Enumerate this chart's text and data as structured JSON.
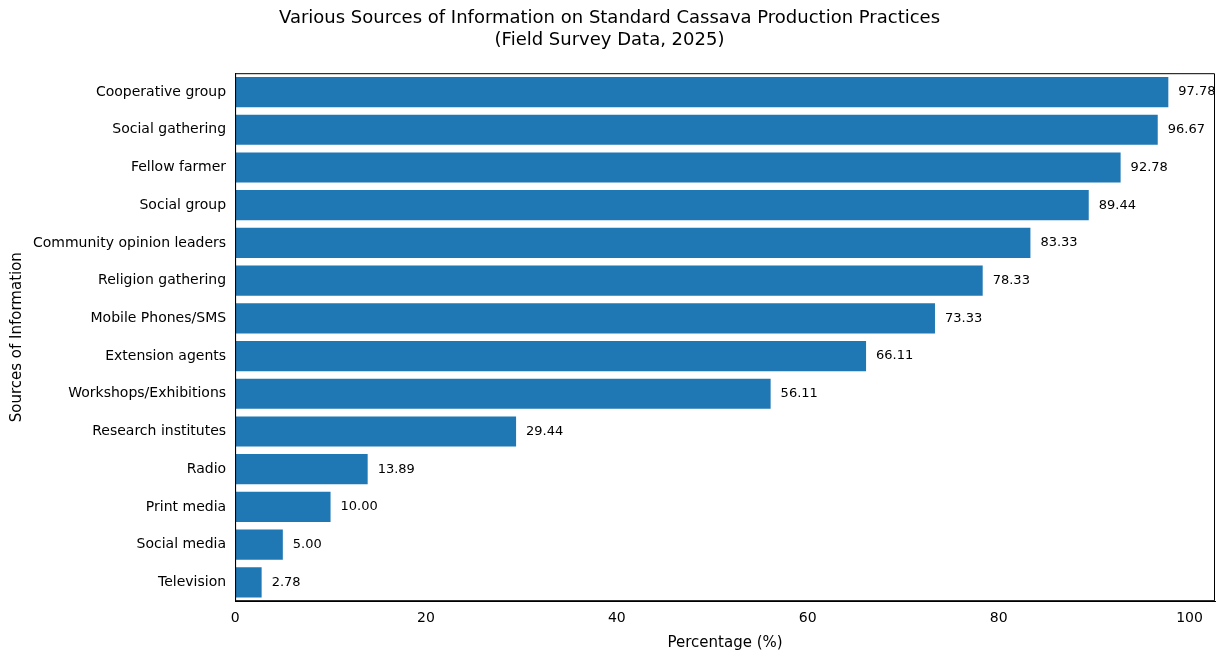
{
  "chart_data": {
    "type": "bar",
    "orientation": "horizontal",
    "title": "Various Sources of Information on Standard Cassava Production Practices\n(Field Survey Data, 2025)",
    "xlabel": "Percentage (%)",
    "ylabel": "Sources of Information",
    "categories": [
      "Cooperative group",
      "Social gathering",
      "Fellow farmer",
      "Social group",
      "Community opinion leaders",
      "Religion gathering",
      "Mobile Phones/SMS",
      "Extension agents",
      "Workshops/Exhibitions",
      "Research institutes",
      "Radio",
      "Print media",
      "Social media",
      "Television"
    ],
    "values": [
      97.78,
      96.67,
      92.78,
      89.44,
      83.33,
      78.33,
      73.33,
      66.11,
      56.11,
      29.44,
      13.89,
      10.0,
      5.0,
      2.78
    ],
    "value_labels": [
      "97.78",
      "96.67",
      "92.78",
      "89.44",
      "83.33",
      "78.33",
      "73.33",
      "66.11",
      "56.11",
      "29.44",
      "13.89",
      "10.00",
      "5.00",
      "2.78"
    ],
    "color": "#1f77b4",
    "xlim": [
      0,
      102.67
    ],
    "xticks": [
      0,
      20,
      40,
      60,
      80,
      100
    ],
    "grid": false,
    "legend": false
  }
}
